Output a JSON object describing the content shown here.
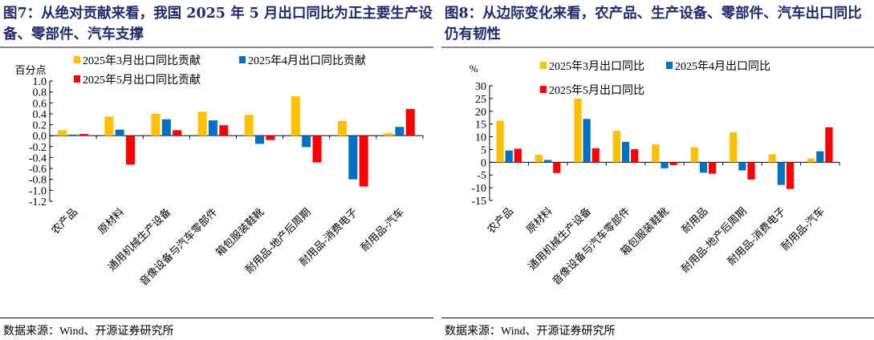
{
  "colors": {
    "mar": "#ffc000",
    "apr": "#0070c0",
    "may": "#ff0000",
    "title": "#1f2a6b"
  },
  "chart_data": [
    {
      "type": "bar",
      "title": "图7：从绝对贡献来看，我国 2025 年 5 月出口同比为正主要生产设备、零部件、汽车支撑",
      "ylabel": "百分点",
      "ylim": [
        -1.2,
        1.0
      ],
      "yticks": [
        "1.0",
        "0.8",
        "0.6",
        "0.4",
        "0.2",
        "0.0",
        "-0.2",
        "-0.4",
        "-0.6",
        "-0.8",
        "-1.0",
        "-1.2"
      ],
      "categories": [
        "农产品",
        "原材料",
        "通用机械生产设备",
        "音像设备与汽车零部件",
        "箱包服装鞋靴",
        "耐用品-地产后周期",
        "耐用品-消费电子",
        "耐用品-汽车"
      ],
      "series": [
        {
          "name": "2025年3月出口同比贡献",
          "values": [
            0.1,
            0.35,
            0.4,
            0.44,
            0.38,
            0.72,
            0.27,
            0.05
          ]
        },
        {
          "name": "2025年4月出口同比贡献",
          "values": [
            0.02,
            0.11,
            0.3,
            0.28,
            -0.15,
            -0.21,
            -0.8,
            0.16
          ]
        },
        {
          "name": "2025年5月出口同比贡献",
          "values": [
            0.03,
            -0.53,
            0.1,
            0.19,
            -0.08,
            -0.49,
            -0.93,
            0.49
          ]
        }
      ],
      "legend": "top",
      "grid": false,
      "source": "数据来源：Wind、开源证券研究所"
    },
    {
      "type": "bar",
      "title": "图8：从边际变化来看，农产品、生产设备、零部件、汽车出口同比仍有韧性",
      "ylabel": "%",
      "ylim": [
        -15,
        30
      ],
      "yticks": [
        "30",
        "25",
        "20",
        "15",
        "10",
        "5",
        "0",
        "-5",
        "-10",
        "-15"
      ],
      "categories": [
        "农产品",
        "原材料",
        "通用机械生产设备",
        "音像设备与汽车零部件",
        "箱包服装鞋靴",
        "耐用品",
        "耐用品-地产后周期",
        "耐用品-消费电子",
        "耐用品-汽车"
      ],
      "series": [
        {
          "name": "2025年3月出口同比",
          "values": [
            16.3,
            3.0,
            25.0,
            12.3,
            7.0,
            5.9,
            11.8,
            3.1,
            1.5
          ]
        },
        {
          "name": "2025年4月出口同比",
          "values": [
            4.6,
            0.9,
            17.0,
            8.0,
            -2.4,
            -4.1,
            -3.2,
            -8.9,
            4.3
          ]
        },
        {
          "name": "2025年5月出口同比",
          "values": [
            5.3,
            -4.2,
            5.5,
            5.1,
            -1.1,
            -4.5,
            -6.8,
            -10.5,
            13.7
          ]
        }
      ],
      "legend": "top",
      "grid": false,
      "source": "数据来源：Wind、开源证券研究所"
    }
  ]
}
